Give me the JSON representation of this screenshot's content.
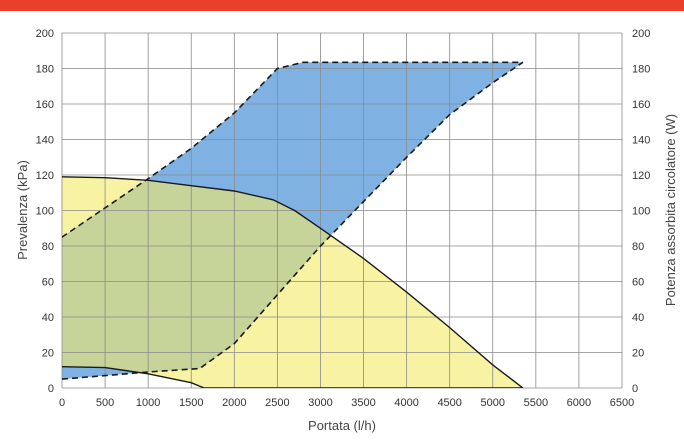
{
  "colors": {
    "accent_bar": "#e8402a",
    "pressure_fill": "#f7f3a3",
    "power_fill": "#7fb2e3",
    "overlap_fill": "#c6d49a",
    "curve": "#1a1a1a",
    "grid": "#8a8a8a"
  },
  "chart_data": {
    "type": "area",
    "xlabel": "Portata (l/h)",
    "ylabel_left": "Prevalenza (kPa)",
    "ylabel_right": "Potenza assorbita circolatore (W)",
    "xlim": [
      0,
      6500
    ],
    "ylim_left": [
      0,
      200
    ],
    "ylim_right": [
      0,
      200
    ],
    "x_ticks": [
      "0",
      "500",
      "1000",
      "1500",
      "2000",
      "2500",
      "3000",
      "3500",
      "4000",
      "4500",
      "5000",
      "5500",
      "6000",
      "6500"
    ],
    "y_ticks_left": [
      "0",
      "20",
      "40",
      "60",
      "80",
      "100",
      "120",
      "140",
      "160",
      "180",
      "200"
    ],
    "y_ticks_right": [
      "0",
      "20",
      "40",
      "60",
      "80",
      "100",
      "120",
      "140",
      "160",
      "180",
      "200"
    ],
    "grid": true,
    "series": [
      {
        "axis": "left",
        "style": "solid",
        "upper": [
          [
            0,
            119
          ],
          [
            500,
            118.5
          ],
          [
            1000,
            117
          ],
          [
            1500,
            114
          ],
          [
            2000,
            111
          ],
          [
            2450,
            106
          ],
          [
            2700,
            100
          ],
          [
            3000,
            90
          ],
          [
            3500,
            73
          ],
          [
            4000,
            54
          ],
          [
            4500,
            34
          ],
          [
            5000,
            13
          ],
          [
            5350,
            0
          ]
        ],
        "lower": [
          [
            0,
            12
          ],
          [
            500,
            11.5
          ],
          [
            1000,
            8
          ],
          [
            1500,
            3
          ],
          [
            1650,
            0
          ],
          [
            5350,
            0
          ]
        ]
      },
      {
        "axis": "right",
        "style": "dashed",
        "upper": [
          [
            0,
            85
          ],
          [
            1000,
            118
          ],
          [
            1500,
            135
          ],
          [
            2000,
            155
          ],
          [
            2500,
            180
          ],
          [
            2800,
            183.5
          ],
          [
            5350,
            183.5
          ]
        ],
        "lower": [
          [
            0,
            5
          ],
          [
            500,
            7
          ],
          [
            1000,
            9
          ],
          [
            1600,
            11
          ],
          [
            2000,
            25
          ],
          [
            3000,
            80
          ],
          [
            3500,
            105
          ],
          [
            4000,
            130
          ],
          [
            4500,
            154
          ],
          [
            5000,
            172
          ],
          [
            5350,
            183.5
          ]
        ]
      }
    ]
  }
}
